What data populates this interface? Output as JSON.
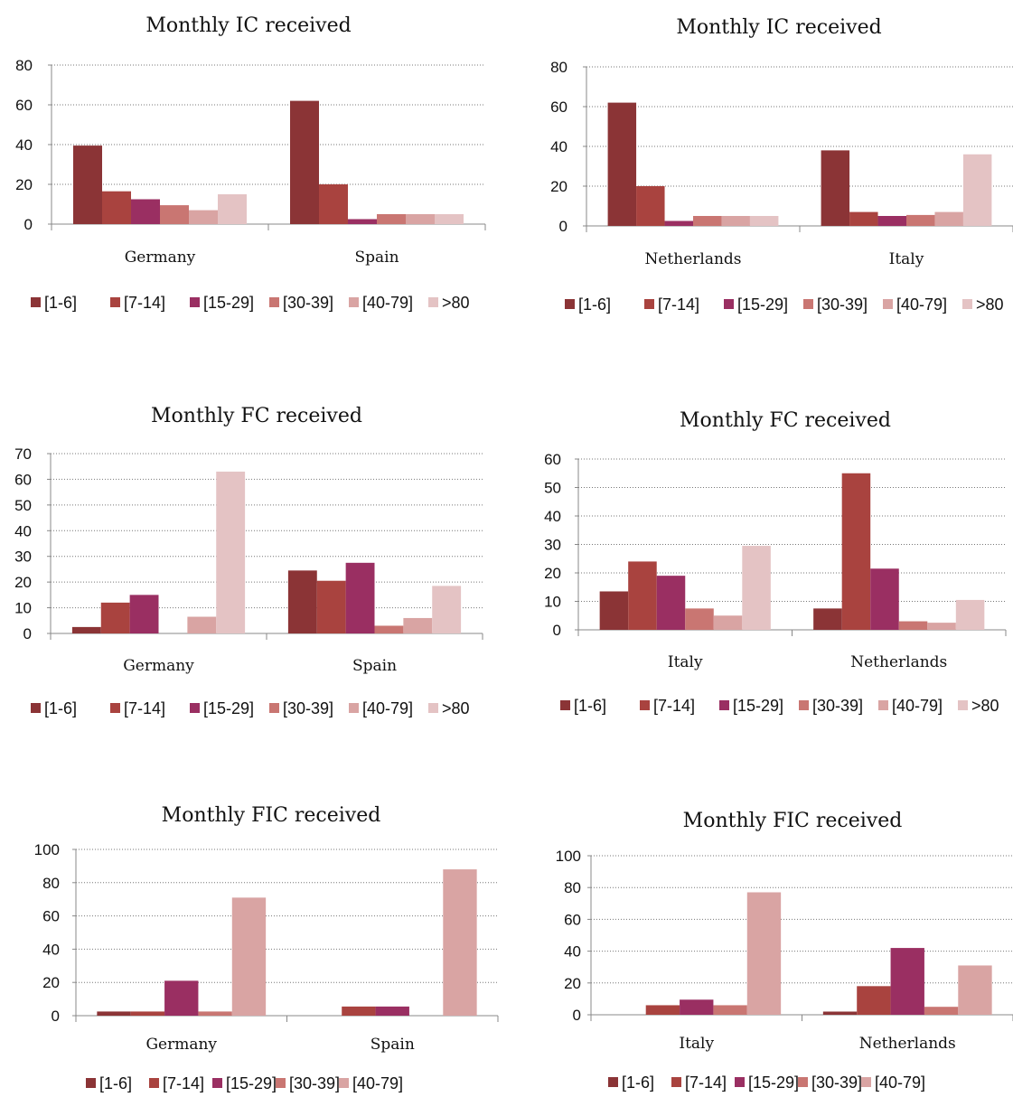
{
  "colors": [
    "#8b3436",
    "#a9433f",
    "#9a2f62",
    "#c97672",
    "#d9a4a3",
    "#e4c3c4"
  ],
  "chart_data": [
    {
      "type": "bar",
      "title": "Monthly IC received",
      "categories": [
        "Germany",
        "Spain"
      ],
      "ylim": [
        0,
        80
      ],
      "yticks": [
        0,
        20,
        40,
        60,
        80
      ],
      "grid": true,
      "legend": "bottom",
      "series": [
        {
          "name": "[1-6]",
          "values": [
            39.5,
            62
          ]
        },
        {
          "name": "[7-14]",
          "values": [
            16.5,
            20
          ]
        },
        {
          "name": "[15-29]",
          "values": [
            12.5,
            2.5
          ]
        },
        {
          "name": "[30-39]",
          "values": [
            9.5,
            5
          ]
        },
        {
          "name": "[40-79]",
          "values": [
            7,
            5
          ]
        },
        {
          "name": ">80",
          "values": [
            15,
            5
          ]
        }
      ]
    },
    {
      "type": "bar",
      "title": "Monthly IC received",
      "categories": [
        "Netherlands",
        "Italy"
      ],
      "ylim": [
        0,
        80
      ],
      "yticks": [
        0,
        20,
        40,
        60,
        80
      ],
      "grid": true,
      "legend": "bottom",
      "series": [
        {
          "name": "[1-6]",
          "values": [
            62,
            38
          ]
        },
        {
          "name": "[7-14]",
          "values": [
            20,
            7
          ]
        },
        {
          "name": "[15-29]",
          "values": [
            2.5,
            5
          ]
        },
        {
          "name": "[30-39]",
          "values": [
            5,
            5.5
          ]
        },
        {
          "name": "[40-79]",
          "values": [
            5,
            7
          ]
        },
        {
          "name": ">80",
          "values": [
            5,
            36
          ]
        }
      ]
    },
    {
      "type": "bar",
      "title": "Monthly FC received",
      "categories": [
        "Germany",
        "Spain"
      ],
      "ylim": [
        0,
        70
      ],
      "yticks": [
        0,
        10,
        20,
        30,
        40,
        50,
        60,
        70
      ],
      "grid": true,
      "legend": "bottom",
      "series": [
        {
          "name": "[1-6]",
          "values": [
            2.5,
            24.5
          ]
        },
        {
          "name": "[7-14]",
          "values": [
            12,
            20.5
          ]
        },
        {
          "name": "[15-29]",
          "values": [
            15,
            27.5
          ]
        },
        {
          "name": "[30-39]",
          "values": [
            0,
            3
          ]
        },
        {
          "name": "[40-79]",
          "values": [
            6.5,
            6
          ]
        },
        {
          "name": ">80",
          "values": [
            63,
            18.5
          ]
        }
      ]
    },
    {
      "type": "bar",
      "title": "Monthly FC received",
      "categories": [
        "Italy",
        "Netherlands"
      ],
      "ylim": [
        0,
        60
      ],
      "yticks": [
        0,
        10,
        20,
        30,
        40,
        50,
        60
      ],
      "grid": true,
      "legend": "bottom",
      "series": [
        {
          "name": "[1-6]",
          "values": [
            13.5,
            7.5
          ]
        },
        {
          "name": "[7-14]",
          "values": [
            24,
            55
          ]
        },
        {
          "name": "[15-29]",
          "values": [
            19,
            21.5
          ]
        },
        {
          "name": "[30-39]",
          "values": [
            7.5,
            3
          ]
        },
        {
          "name": "[40-79]",
          "values": [
            5,
            2.5
          ]
        },
        {
          "name": ">80",
          "values": [
            29.5,
            10.5
          ]
        }
      ]
    },
    {
      "type": "bar",
      "title": "Monthly FIC received",
      "categories": [
        "Germany",
        "Spain"
      ],
      "ylim": [
        0,
        100
      ],
      "yticks": [
        0,
        20,
        40,
        60,
        80,
        100
      ],
      "grid": true,
      "legend": "bottom",
      "series": [
        {
          "name": "[1-6]",
          "values": [
            2.5,
            0
          ]
        },
        {
          "name": "[7-14]",
          "values": [
            2.5,
            5.5
          ]
        },
        {
          "name": "[15-29]",
          "values": [
            21,
            5.5
          ]
        },
        {
          "name": "[30-39]",
          "values": [
            2.5,
            0
          ]
        },
        {
          "name": "[40-79]",
          "values": [
            71,
            88
          ]
        }
      ]
    },
    {
      "type": "bar",
      "title": "Monthly FIC received",
      "categories": [
        "Italy",
        "Netherlands"
      ],
      "ylim": [
        0,
        100
      ],
      "yticks": [
        0,
        20,
        40,
        60,
        80,
        100
      ],
      "grid": true,
      "legend": "bottom",
      "series": [
        {
          "name": "[1-6]",
          "values": [
            0,
            2
          ]
        },
        {
          "name": "[7-14]",
          "values": [
            6,
            18
          ]
        },
        {
          "name": "[15-29]",
          "values": [
            9.5,
            42
          ]
        },
        {
          "name": "[30-39]",
          "values": [
            6,
            5
          ]
        },
        {
          "name": "[40-79]",
          "values": [
            77,
            31
          ]
        }
      ]
    }
  ]
}
